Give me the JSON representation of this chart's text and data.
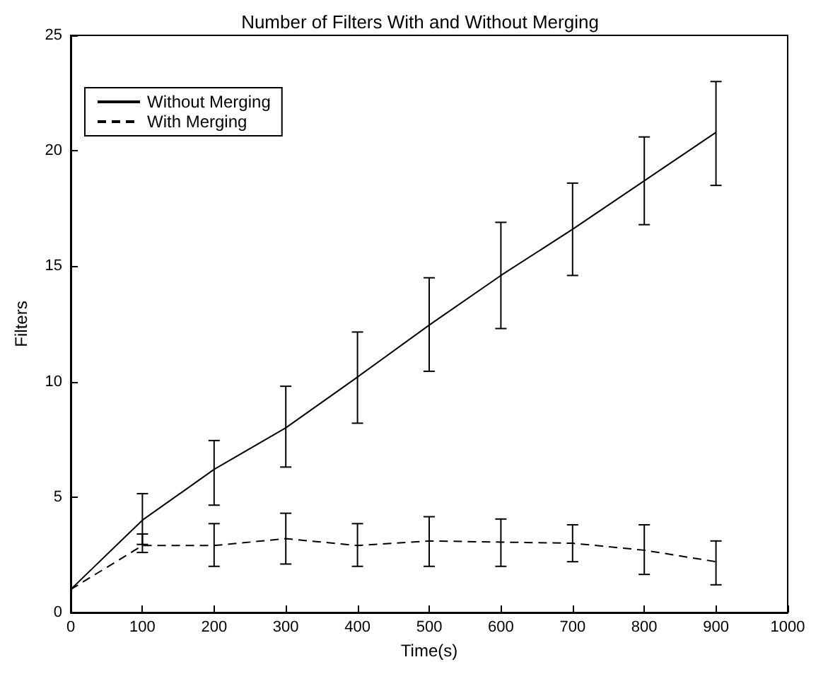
{
  "chart_data": {
    "type": "line",
    "title": "Number of Filters With and Without Merging",
    "xlabel": "Time(s)",
    "ylabel": "Filters",
    "x": [
      0,
      100,
      200,
      300,
      400,
      500,
      600,
      700,
      800,
      900
    ],
    "xlim": [
      0,
      1000
    ],
    "xticks": [
      0,
      100,
      200,
      300,
      400,
      500,
      600,
      700,
      800,
      900,
      1000
    ],
    "ylim": [
      0,
      25
    ],
    "yticks": [
      0,
      5,
      10,
      15,
      20,
      25
    ],
    "grid": false,
    "legend": "top left",
    "marker": "none",
    "series": [
      {
        "name": "Without Merging",
        "color": "#000000",
        "line_style": "solid",
        "values": [
          1,
          4.0,
          6.2,
          8.0,
          10.2,
          12.45,
          14.6,
          16.6,
          18.7,
          20.8
        ],
        "errors": [
          null,
          [
            2.95,
            5.15
          ],
          [
            4.65,
            7.45
          ],
          [
            6.3,
            9.8
          ],
          [
            8.2,
            12.15
          ],
          [
            10.45,
            14.5
          ],
          [
            12.3,
            16.9
          ],
          [
            14.6,
            18.6
          ],
          [
            16.8,
            20.6
          ],
          [
            18.5,
            23.0
          ]
        ]
      },
      {
        "name": "With Merging",
        "color": "#000000",
        "line_style": "dashed",
        "values": [
          1,
          2.9,
          2.9,
          3.2,
          2.9,
          3.1,
          3.05,
          3.0,
          2.7,
          2.2
        ],
        "errors": [
          null,
          [
            2.6,
            3.4
          ],
          [
            2.0,
            3.85
          ],
          [
            2.1,
            4.3
          ],
          [
            2.0,
            3.85
          ],
          [
            2.0,
            4.15
          ],
          [
            2.0,
            4.05
          ],
          [
            2.2,
            3.8
          ],
          [
            1.65,
            3.8
          ],
          [
            1.2,
            3.1
          ]
        ]
      }
    ]
  }
}
